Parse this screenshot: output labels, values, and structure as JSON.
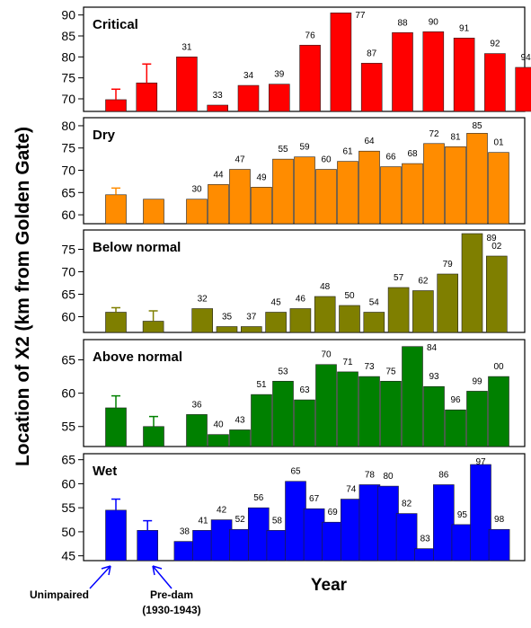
{
  "figure": {
    "ylabel": "Location of X2 (km from Golden Gate)",
    "xlabel": "Year",
    "annotation_unimpaired": "Unimpaired",
    "annotation_predam_line1": "Pre-dam",
    "annotation_predam_line2": "(1930-1943)"
  },
  "chart_data": [
    {
      "type": "bar",
      "title": "Critical",
      "color": "#ff0000",
      "ylim": [
        67,
        91
      ],
      "yticks": [
        70,
        75,
        80,
        85,
        90
      ],
      "bars": [
        {
          "label": "",
          "value": 69.8,
          "err": 2.5
        },
        {
          "label": "",
          "value": 73.8,
          "err": 4.5
        },
        {
          "label": "31",
          "value": 80.0
        },
        {
          "label": "33",
          "value": 68.5
        },
        {
          "label": "34",
          "value": 73.2
        },
        {
          "label": "39",
          "value": 73.5
        },
        {
          "label": "76",
          "value": 82.8
        },
        {
          "label": "77",
          "value": 90.5
        },
        {
          "label": "87",
          "value": 78.5
        },
        {
          "label": "88",
          "value": 85.8
        },
        {
          "label": "90",
          "value": 86.0
        },
        {
          "label": "91",
          "value": 84.5
        },
        {
          "label": "92",
          "value": 80.8
        },
        {
          "label": "94",
          "value": 77.5
        }
      ]
    },
    {
      "type": "bar",
      "title": "Dry",
      "color": "#ff8c00",
      "ylim": [
        58,
        81
      ],
      "yticks": [
        60,
        65,
        70,
        75,
        80
      ],
      "bars": [
        {
          "label": "",
          "value": 64.5,
          "err": 1.5
        },
        {
          "label": "",
          "value": 63.5
        },
        {
          "label": "30",
          "value": 63.5
        },
        {
          "label": "44",
          "value": 66.8
        },
        {
          "label": "47",
          "value": 70.2
        },
        {
          "label": "49",
          "value": 66.2
        },
        {
          "label": "55",
          "value": 72.5
        },
        {
          "label": "59",
          "value": 73.0
        },
        {
          "label": "60",
          "value": 70.2
        },
        {
          "label": "61",
          "value": 72.0
        },
        {
          "label": "64",
          "value": 74.3
        },
        {
          "label": "66",
          "value": 70.8
        },
        {
          "label": "68",
          "value": 71.5
        },
        {
          "label": "72",
          "value": 76.0
        },
        {
          "label": "81",
          "value": 75.3
        },
        {
          "label": "85",
          "value": 78.3
        },
        {
          "label": "01",
          "value": 74.0
        }
      ]
    },
    {
      "type": "bar",
      "title": "Below normal",
      "color": "#7f7f00",
      "ylim": [
        56.5,
        78.5
      ],
      "yticks": [
        60,
        65,
        70,
        75
      ],
      "bars": [
        {
          "label": "",
          "value": 61.0,
          "err": 1.0
        },
        {
          "label": "",
          "value": 59.0,
          "err": 2.3
        },
        {
          "label": "32",
          "value": 61.8
        },
        {
          "label": "35",
          "value": 57.8
        },
        {
          "label": "37",
          "value": 57.8
        },
        {
          "label": "45",
          "value": 61.0
        },
        {
          "label": "46",
          "value": 61.8
        },
        {
          "label": "48",
          "value": 64.5
        },
        {
          "label": "50",
          "value": 62.5
        },
        {
          "label": "54",
          "value": 61.0
        },
        {
          "label": "57",
          "value": 66.5
        },
        {
          "label": "62",
          "value": 65.8
        },
        {
          "label": "79",
          "value": 69.5
        },
        {
          "label": "89",
          "value": 78.5
        },
        {
          "label": "02",
          "value": 73.5
        }
      ]
    },
    {
      "type": "bar",
      "title": "Above normal",
      "color": "#008000",
      "ylim": [
        52,
        67.5
      ],
      "yticks": [
        55,
        60,
        65
      ],
      "bars": [
        {
          "label": "",
          "value": 57.8,
          "err": 1.8
        },
        {
          "label": "",
          "value": 55.0,
          "err": 1.5
        },
        {
          "label": "36",
          "value": 56.8
        },
        {
          "label": "40",
          "value": 53.8
        },
        {
          "label": "43",
          "value": 54.5
        },
        {
          "label": "51",
          "value": 59.8
        },
        {
          "label": "53",
          "value": 61.8
        },
        {
          "label": "63",
          "value": 59.0
        },
        {
          "label": "70",
          "value": 64.3
        },
        {
          "label": "71",
          "value": 63.2
        },
        {
          "label": "73",
          "value": 62.5
        },
        {
          "label": "75",
          "value": 61.8
        },
        {
          "label": "84",
          "value": 67.0
        },
        {
          "label": "93",
          "value": 61.0
        },
        {
          "label": "96",
          "value": 57.5
        },
        {
          "label": "99",
          "value": 60.3
        },
        {
          "label": "00",
          "value": 62.5
        }
      ]
    },
    {
      "type": "bar",
      "title": "Wet",
      "color": "#0000ff",
      "ylim": [
        44,
        65.5
      ],
      "yticks": [
        45,
        50,
        55,
        60,
        65
      ],
      "bars": [
        {
          "label": "",
          "value": 54.5,
          "err": 2.3
        },
        {
          "label": "",
          "value": 50.3,
          "err": 2.0
        },
        {
          "label": "38",
          "value": 48.0
        },
        {
          "label": "41",
          "value": 50.3
        },
        {
          "label": "42",
          "value": 52.5
        },
        {
          "label": "52",
          "value": 50.5
        },
        {
          "label": "56",
          "value": 55.0
        },
        {
          "label": "58",
          "value": 50.3
        },
        {
          "label": "65",
          "value": 60.5
        },
        {
          "label": "67",
          "value": 54.8
        },
        {
          "label": "69",
          "value": 52.0
        },
        {
          "label": "74",
          "value": 56.8
        },
        {
          "label": "78",
          "value": 59.8
        },
        {
          "label": "80",
          "value": 59.5
        },
        {
          "label": "82",
          "value": 53.8
        },
        {
          "label": "83",
          "value": 46.5
        },
        {
          "label": "86",
          "value": 59.8
        },
        {
          "label": "95",
          "value": 51.5
        },
        {
          "label": "97",
          "value": 64.0
        },
        {
          "label": "98",
          "value": 50.5
        }
      ]
    }
  ]
}
